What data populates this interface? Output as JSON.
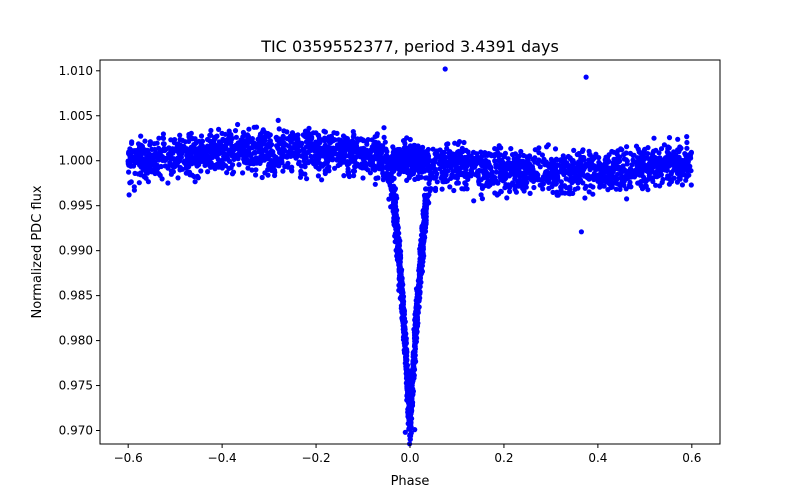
{
  "chart_data": {
    "type": "scatter",
    "title": "TIC 0359552377, period 3.4391 days",
    "xlabel": "Phase",
    "ylabel": "Normalized PDC flux",
    "xlim": [
      -0.66,
      0.66
    ],
    "ylim": [
      0.9685,
      1.0112
    ],
    "xticks": [
      -0.6,
      -0.4,
      -0.2,
      0.0,
      0.2,
      0.4,
      0.6
    ],
    "xtick_labels": [
      "−0.6",
      "−0.4",
      "−0.2",
      "0.0",
      "0.2",
      "0.4",
      "0.6"
    ],
    "yticks": [
      0.97,
      0.975,
      0.98,
      0.985,
      0.99,
      0.995,
      1.0,
      1.005,
      1.01
    ],
    "ytick_labels": [
      "0.970",
      "0.975",
      "0.980",
      "0.985",
      "0.990",
      "0.995",
      "1.000",
      "1.005",
      "1.010"
    ],
    "grid": false,
    "marker_color": "#0000ff",
    "phase_range": [
      -0.6,
      0.6
    ],
    "baseline_flux": 1.0,
    "scatter_half_width": 0.0035,
    "primary_eclipse": {
      "center": 0.0,
      "min_flux": 0.9705,
      "half_width": 0.055
    },
    "secondary_feature": {
      "center": 0.0,
      "min_flux": 0.9975,
      "half_width": 0.01
    },
    "outliers": [
      {
        "x": 0.365,
        "y": 0.9921
      },
      {
        "x": 0.375,
        "y": 1.0093
      },
      {
        "x": 0.075,
        "y": 1.0102
      },
      {
        "x": -0.598,
        "y": 0.9962
      },
      {
        "x": -0.01,
        "y": 0.9698
      },
      {
        "x": 0.01,
        "y": 0.9701
      }
    ]
  }
}
